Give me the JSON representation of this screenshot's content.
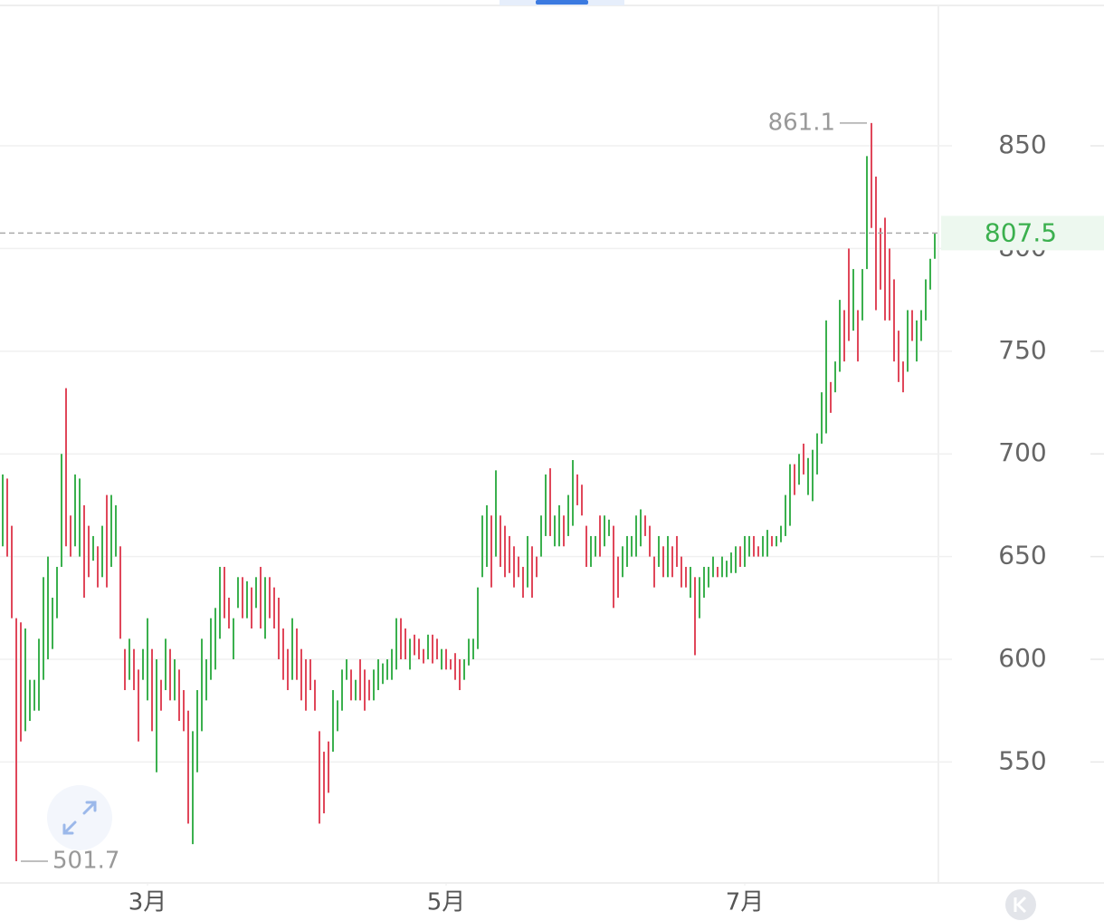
{
  "chart_data": {
    "type": "ohlc-bar",
    "ylim": [
      491.1,
      921.0
    ],
    "yticks": [
      550,
      600,
      650,
      700,
      750,
      800,
      850
    ],
    "xticks": [
      {
        "value": 32,
        "label": "3月"
      },
      {
        "value": 98,
        "label": "5月"
      },
      {
        "value": 164,
        "label": "7月"
      }
    ],
    "grid": true,
    "up_color": "#3bb04e",
    "down_color": "#e0475a",
    "annotations": {
      "max": 861.1,
      "min": 501.7,
      "last": 807.5
    },
    "high": [
      690,
      688,
      665,
      620,
      618,
      615,
      590,
      590,
      610,
      640,
      650,
      630,
      645,
      700,
      732,
      670,
      690,
      688,
      675,
      665,
      660,
      655,
      665,
      680,
      680,
      675,
      655,
      605,
      610,
      605,
      595,
      605,
      620,
      605,
      600,
      590,
      610,
      605,
      600,
      595,
      585,
      575,
      565,
      585,
      610,
      600,
      620,
      625,
      645,
      645,
      630,
      620,
      640,
      640,
      638,
      635,
      640,
      645,
      640,
      640,
      635,
      630,
      615,
      605,
      620,
      615,
      605,
      600,
      600,
      590,
      565,
      555,
      560,
      585,
      580,
      595,
      600,
      595,
      590,
      600,
      595,
      590,
      595,
      600,
      598,
      600,
      605,
      620,
      620,
      615,
      610,
      612,
      610,
      605,
      612,
      612,
      610,
      605,
      605,
      600,
      603,
      600,
      600,
      610,
      610,
      635,
      670,
      675,
      670,
      692,
      670,
      665,
      660,
      655,
      650,
      645,
      660,
      655,
      650,
      670,
      690,
      693,
      670,
      675,
      670,
      680,
      697,
      690,
      685,
      665,
      660,
      660,
      670,
      670,
      668,
      665,
      650,
      655,
      660,
      660,
      670,
      673,
      670,
      665,
      650,
      660,
      655,
      660,
      655,
      660,
      650,
      645,
      645,
      640,
      640,
      645,
      645,
      650,
      645,
      650,
      648,
      652,
      655,
      655,
      660,
      660,
      660,
      655,
      660,
      663,
      660,
      660,
      665,
      680,
      695,
      695,
      700,
      705,
      698,
      702,
      710,
      730,
      765,
      735,
      745,
      775,
      770,
      800,
      790,
      770,
      790,
      845,
      861.1,
      835,
      810,
      815,
      800,
      785,
      760,
      745,
      770,
      770,
      765,
      770,
      785,
      795,
      807.5
    ],
    "low": [
      655,
      650,
      620,
      501.7,
      560,
      565,
      570,
      575,
      575,
      590,
      600,
      605,
      620,
      645,
      655,
      650,
      655,
      650,
      630,
      640,
      648,
      635,
      640,
      635,
      645,
      650,
      610,
      585,
      590,
      585,
      560,
      590,
      580,
      565,
      545,
      575,
      585,
      580,
      580,
      570,
      565,
      520,
      510,
      545,
      565,
      580,
      590,
      595,
      610,
      620,
      615,
      600,
      625,
      620,
      620,
      615,
      625,
      615,
      610,
      620,
      615,
      600,
      590,
      585,
      590,
      590,
      580,
      575,
      585,
      575,
      520,
      525,
      535,
      555,
      565,
      575,
      590,
      580,
      580,
      580,
      575,
      580,
      580,
      585,
      588,
      590,
      590,
      595,
      600,
      600,
      595,
      602,
      600,
      598,
      600,
      598,
      600,
      595,
      595,
      595,
      590,
      585,
      590,
      597,
      600,
      605,
      640,
      645,
      635,
      650,
      645,
      640,
      642,
      635,
      640,
      630,
      635,
      630,
      640,
      650,
      660,
      660,
      655,
      655,
      655,
      660,
      665,
      675,
      670,
      645,
      645,
      650,
      650,
      655,
      660,
      625,
      630,
      640,
      645,
      650,
      650,
      655,
      660,
      650,
      635,
      645,
      640,
      640,
      640,
      645,
      635,
      635,
      630,
      602,
      620,
      630,
      635,
      640,
      640,
      640,
      640,
      642,
      642,
      645,
      645,
      650,
      650,
      650,
      650,
      650,
      655,
      655,
      657,
      660,
      665,
      680,
      685,
      690,
      680,
      677,
      690,
      705,
      710,
      720,
      730,
      740,
      745,
      755,
      760,
      745,
      765,
      790,
      810,
      770,
      780,
      765,
      765,
      745,
      735,
      730,
      740,
      755,
      745,
      755,
      765,
      780,
      795
    ],
    "up": [
      true,
      false,
      false,
      false,
      false,
      true,
      true,
      true,
      true,
      true,
      true,
      true,
      true,
      true,
      false,
      false,
      true,
      true,
      false,
      false,
      true,
      false,
      true,
      false,
      true,
      true,
      false,
      false,
      true,
      false,
      false,
      true,
      true,
      false,
      true,
      false,
      true,
      false,
      true,
      false,
      false,
      false,
      true,
      true,
      true,
      true,
      true,
      true,
      true,
      false,
      false,
      true,
      true,
      false,
      true,
      false,
      true,
      false,
      true,
      false,
      false,
      false,
      false,
      false,
      true,
      false,
      false,
      false,
      false,
      false,
      false,
      false,
      false,
      true,
      true,
      true,
      true,
      false,
      true,
      false,
      false,
      false,
      true,
      true,
      true,
      true,
      true,
      true,
      false,
      false,
      true,
      false,
      false,
      false,
      true,
      false,
      false,
      true,
      false,
      false,
      false,
      false,
      true,
      true,
      true,
      true,
      true,
      true,
      false,
      true,
      false,
      false,
      false,
      false,
      false,
      false,
      true,
      false,
      false,
      true,
      true,
      false,
      true,
      true,
      false,
      true,
      true,
      false,
      false,
      false,
      true,
      true,
      false,
      true,
      true,
      false,
      false,
      true,
      true,
      true,
      true,
      true,
      false,
      false,
      false,
      true,
      false,
      true,
      false,
      false,
      false,
      false,
      true,
      false,
      true,
      true,
      true,
      true,
      false,
      true,
      true,
      true,
      true,
      false,
      true,
      true,
      false,
      false,
      true,
      true,
      false,
      true,
      true,
      true,
      true,
      false,
      true,
      false,
      true,
      true,
      true,
      true,
      true,
      false,
      true,
      true,
      false,
      false,
      true,
      false,
      true,
      true,
      false,
      false,
      false,
      false,
      false,
      false,
      false,
      false,
      true,
      false,
      true,
      true,
      true,
      true,
      true
    ]
  }
}
